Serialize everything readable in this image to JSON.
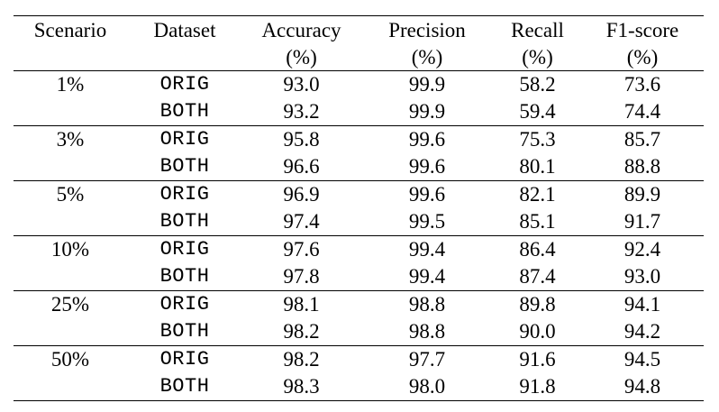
{
  "table": {
    "headers": [
      {
        "name": "Scenario",
        "unit": ""
      },
      {
        "name": "Dataset",
        "unit": ""
      },
      {
        "name": "Accuracy",
        "unit": "(%)"
      },
      {
        "name": "Precision",
        "unit": "(%)"
      },
      {
        "name": "Recall",
        "unit": "(%)"
      },
      {
        "name": "F1-score",
        "unit": "(%)"
      }
    ],
    "groups": [
      {
        "scenario": "1%",
        "rows": [
          {
            "dataset": "ORIG",
            "accuracy": "93.0",
            "precision": "99.9",
            "recall": "58.2",
            "f1": "73.6"
          },
          {
            "dataset": "BOTH",
            "accuracy": "93.2",
            "precision": "99.9",
            "recall": "59.4",
            "f1": "74.4"
          }
        ]
      },
      {
        "scenario": "3%",
        "rows": [
          {
            "dataset": "ORIG",
            "accuracy": "95.8",
            "precision": "99.6",
            "recall": "75.3",
            "f1": "85.7"
          },
          {
            "dataset": "BOTH",
            "accuracy": "96.6",
            "precision": "99.6",
            "recall": "80.1",
            "f1": "88.8"
          }
        ]
      },
      {
        "scenario": "5%",
        "rows": [
          {
            "dataset": "ORIG",
            "accuracy": "96.9",
            "precision": "99.6",
            "recall": "82.1",
            "f1": "89.9"
          },
          {
            "dataset": "BOTH",
            "accuracy": "97.4",
            "precision": "99.5",
            "recall": "85.1",
            "f1": "91.7"
          }
        ]
      },
      {
        "scenario": "10%",
        "rows": [
          {
            "dataset": "ORIG",
            "accuracy": "97.6",
            "precision": "99.4",
            "recall": "86.4",
            "f1": "92.4"
          },
          {
            "dataset": "BOTH",
            "accuracy": "97.8",
            "precision": "99.4",
            "recall": "87.4",
            "f1": "93.0"
          }
        ]
      },
      {
        "scenario": "25%",
        "rows": [
          {
            "dataset": "ORIG",
            "accuracy": "98.1",
            "precision": "98.8",
            "recall": "89.8",
            "f1": "94.1"
          },
          {
            "dataset": "BOTH",
            "accuracy": "98.2",
            "precision": "98.8",
            "recall": "90.0",
            "f1": "94.2"
          }
        ]
      },
      {
        "scenario": "50%",
        "rows": [
          {
            "dataset": "ORIG",
            "accuracy": "98.2",
            "precision": "97.7",
            "recall": "91.6",
            "f1": "94.5"
          },
          {
            "dataset": "BOTH",
            "accuracy": "98.3",
            "precision": "98.0",
            "recall": "91.8",
            "f1": "94.8"
          }
        ]
      }
    ]
  }
}
